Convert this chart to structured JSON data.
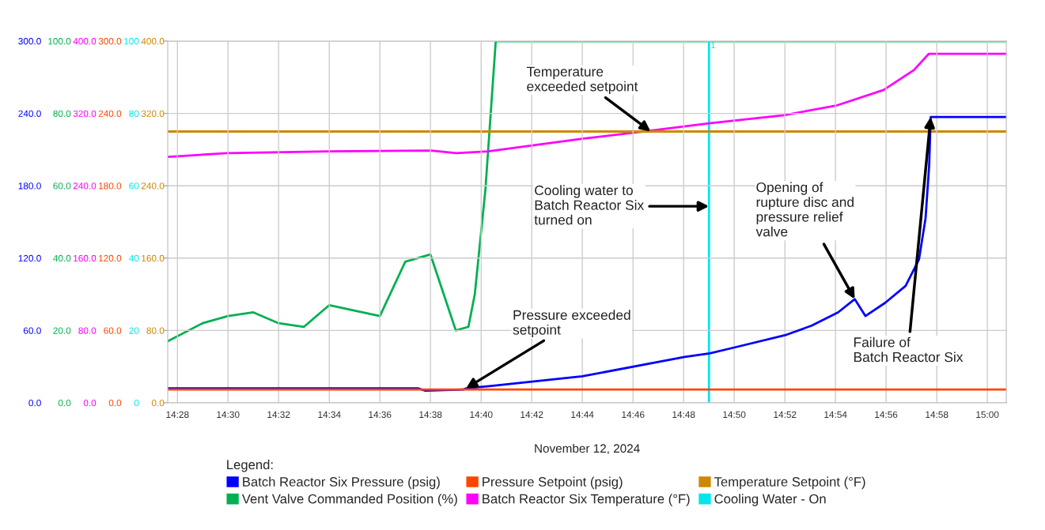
{
  "chart_data": {
    "type": "line",
    "xlabel": "November 12, 2024",
    "legend_title": "Legend:",
    "legend": "bottom",
    "grid": true,
    "xlim": [
      14.4603,
      15.0125
    ],
    "xticks": [
      {
        "value": 14.4667,
        "label": "14:28"
      },
      {
        "value": 14.5,
        "label": "14:30"
      },
      {
        "value": 14.5333,
        "label": "14:32"
      },
      {
        "value": 14.5667,
        "label": "14:34"
      },
      {
        "value": 14.6,
        "label": "14:36"
      },
      {
        "value": 14.6333,
        "label": "14:38"
      },
      {
        "value": 14.6667,
        "label": "14:40"
      },
      {
        "value": 14.7,
        "label": "14:42"
      },
      {
        "value": 14.7333,
        "label": "14:44"
      },
      {
        "value": 14.7667,
        "label": "14:46"
      },
      {
        "value": 14.8,
        "label": "14:48"
      },
      {
        "value": 14.8333,
        "label": "14:50"
      },
      {
        "value": 14.8667,
        "label": "14:52"
      },
      {
        "value": 14.9,
        "label": "14:54"
      },
      {
        "value": 14.9333,
        "label": "14:56"
      },
      {
        "value": 14.9667,
        "label": "14:58"
      },
      {
        "value": 15.0,
        "label": "15:00"
      }
    ],
    "ylim": [
      0,
      300
    ],
    "yticks": [
      {
        "value": 0,
        "label": "0.0"
      },
      {
        "value": 60,
        "label": "60.0"
      },
      {
        "value": 120,
        "label": "120.0"
      },
      {
        "value": 180,
        "label": "180.0"
      },
      {
        "value": 240,
        "label": "240.0"
      },
      {
        "value": 300,
        "label": "300.0"
      }
    ],
    "y2lim": [
      0,
      100
    ],
    "y2ticks": [
      {
        "value": 0,
        "label": "0.0"
      },
      {
        "value": 20,
        "label": "20.0"
      },
      {
        "value": 40,
        "label": "40.0"
      },
      {
        "value": 60,
        "label": "60.0"
      },
      {
        "value": 80,
        "label": "80.0"
      },
      {
        "value": 100,
        "label": "100.0"
      }
    ],
    "y3lim": [
      0,
      400
    ],
    "y3ticks": [
      {
        "value": 0,
        "label": "0.0"
      },
      {
        "value": 80,
        "label": "80.0"
      },
      {
        "value": 160,
        "label": "160.0"
      },
      {
        "value": 240,
        "label": "240.0"
      },
      {
        "value": 320,
        "label": "320.0"
      },
      {
        "value": 400,
        "label": "400.0"
      }
    ],
    "series": [
      {
        "name": "Batch Reactor Six Pressure (psig)",
        "color": "#0000ff",
        "x": [
          14.4603,
          14.625,
          14.63,
          14.655,
          14.6567,
          14.6733,
          14.7333,
          14.8007,
          14.8172,
          14.8338,
          14.8667,
          14.8843,
          14.9017,
          14.9127,
          14.9197,
          14.9328,
          14.9462,
          14.955,
          14.9593,
          14.9617,
          14.9627,
          15.0125
        ],
        "values": [
          12,
          12,
          10,
          11,
          12,
          14,
          22,
          38,
          41,
          46,
          56,
          64,
          75,
          86,
          72,
          83,
          97,
          119,
          153,
          197,
          237,
          237
        ]
      },
      {
        "name": "Vent Valve Commanded Position (%)",
        "axis": "y2",
        "color": "#00b050",
        "x": [
          14.4603,
          14.4833,
          14.5,
          14.5167,
          14.5333,
          14.55,
          14.5667,
          14.6,
          14.6167,
          14.6333,
          14.65,
          14.6583,
          14.6625,
          14.6695,
          14.6763,
          15.0125
        ],
        "values": [
          17,
          22,
          24,
          25,
          22,
          21,
          27,
          24,
          39,
          41,
          20,
          21,
          30,
          59,
          100,
          100
        ]
      },
      {
        "name": "Pressure Setpoint (psig)",
        "color": "#ff4500",
        "x": [
          14.4603,
          15.0125
        ],
        "values": [
          11,
          11
        ]
      },
      {
        "name": "Batch Reactor Six Temperature (°F)",
        "axis": "y3",
        "color": "#ff00ff",
        "x": [
          14.4603,
          14.4993,
          14.567,
          14.6338,
          14.6503,
          14.6712,
          14.7333,
          14.7783,
          14.8167,
          14.866,
          14.9012,
          14.9317,
          14.9517,
          14.9615,
          15.0125
        ],
        "values": [
          272,
          276,
          278,
          279,
          276,
          278,
          292,
          301,
          309,
          318,
          329,
          346,
          368,
          386,
          386
        ]
      },
      {
        "name": "Temperature Setpoint (°F)",
        "axis": "y3",
        "color": "#cc8800",
        "x": [
          14.4603,
          15.0125
        ],
        "values": [
          300,
          300
        ]
      },
      {
        "name": "Cooling Water - On",
        "axis": "y2",
        "color": "#00e5ee",
        "x": [
          14.8167,
          14.8167
        ],
        "values": [
          0,
          100
        ]
      }
    ],
    "annotations": [
      {
        "text": "Temperature\nexceeded setpoint",
        "x": 14.7783,
        "y": 225
      },
      {
        "text": "Cooling water to\nBatch Reactor Six\nturned on",
        "x": 14.8167,
        "y": 163
      },
      {
        "text": "Opening of\nrupture disc and\npressure relief\nvalve",
        "x": 14.9127,
        "y": 86
      },
      {
        "text": "Pressure exceeded\nsetpoint",
        "x": 14.6567,
        "y": 12
      },
      {
        "text": "Failure of\nBatch Reactor Six",
        "x": 14.9627,
        "y": 237
      },
      {
        "text": "1",
        "x": 14.8167,
        "y": 296
      },
      "0",
      "20",
      "40",
      "60",
      "80",
      "100"
    ]
  }
}
